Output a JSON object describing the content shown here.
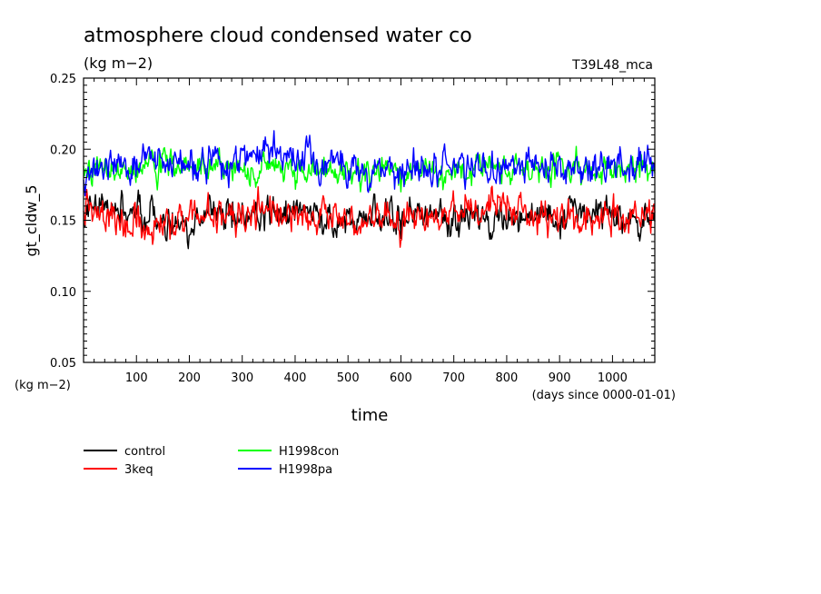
{
  "chart_data": {
    "type": "line",
    "title": "atmosphere cloud condensed water co",
    "subtitle": "(kg m−2)",
    "run_label": "T39L48_mca",
    "ylabel": "gt_cldw_5",
    "yunits": "(kg m−2)",
    "xlabel": "time",
    "xunits": "(days since 0000-01-01)",
    "xlim": [
      0,
      1080
    ],
    "ylim": [
      0.05,
      0.25
    ],
    "xticks": [
      100,
      200,
      300,
      400,
      500,
      600,
      700,
      800,
      900,
      1000
    ],
    "xtick_labels": [
      "100",
      "200",
      "300",
      "400",
      "500",
      "600",
      "700",
      "800",
      "900",
      "1000"
    ],
    "yticks": [
      0.05,
      0.1,
      0.15,
      0.2,
      0.25
    ],
    "ytick_labels": [
      "0.05",
      "0.10",
      "0.15",
      "0.20",
      "0.25"
    ],
    "grid": false,
    "legend_position": "below",
    "series": [
      {
        "name": "control",
        "color": "#000000",
        "mean": 0.153,
        "variability": 0.007,
        "anchors": [
          [
            0,
            0.157
          ],
          [
            50,
            0.163
          ],
          [
            100,
            0.155
          ],
          [
            150,
            0.152
          ],
          [
            200,
            0.147
          ],
          [
            250,
            0.16
          ],
          [
            300,
            0.155
          ],
          [
            350,
            0.153
          ],
          [
            400,
            0.158
          ],
          [
            450,
            0.15
          ],
          [
            500,
            0.152
          ],
          [
            550,
            0.153
          ],
          [
            600,
            0.152
          ],
          [
            650,
            0.153
          ],
          [
            700,
            0.15
          ],
          [
            750,
            0.15
          ],
          [
            800,
            0.151
          ],
          [
            850,
            0.153
          ],
          [
            900,
            0.152
          ],
          [
            950,
            0.155
          ],
          [
            1000,
            0.153
          ],
          [
            1080,
            0.15
          ]
        ]
      },
      {
        "name": "3keq",
        "color": "#ff0000",
        "mean": 0.152,
        "variability": 0.007,
        "anchors": [
          [
            0,
            0.16
          ],
          [
            50,
            0.153
          ],
          [
            100,
            0.147
          ],
          [
            150,
            0.15
          ],
          [
            200,
            0.152
          ],
          [
            250,
            0.155
          ],
          [
            300,
            0.155
          ],
          [
            350,
            0.158
          ],
          [
            400,
            0.15
          ],
          [
            450,
            0.152
          ],
          [
            500,
            0.152
          ],
          [
            550,
            0.15
          ],
          [
            600,
            0.148
          ],
          [
            650,
            0.152
          ],
          [
            700,
            0.155
          ],
          [
            750,
            0.158
          ],
          [
            800,
            0.16
          ],
          [
            850,
            0.157
          ],
          [
            900,
            0.15
          ],
          [
            950,
            0.148
          ],
          [
            1000,
            0.153
          ],
          [
            1080,
            0.155
          ]
        ]
      },
      {
        "name": "H1998con",
        "color": "#00ff00",
        "mean": 0.186,
        "variability": 0.006,
        "anchors": [
          [
            0,
            0.188
          ],
          [
            50,
            0.185
          ],
          [
            100,
            0.186
          ],
          [
            150,
            0.188
          ],
          [
            200,
            0.187
          ],
          [
            250,
            0.19
          ],
          [
            300,
            0.185
          ],
          [
            350,
            0.187
          ],
          [
            400,
            0.185
          ],
          [
            450,
            0.186
          ],
          [
            500,
            0.184
          ],
          [
            550,
            0.185
          ],
          [
            600,
            0.183
          ],
          [
            650,
            0.185
          ],
          [
            700,
            0.183
          ],
          [
            750,
            0.187
          ],
          [
            800,
            0.185
          ],
          [
            850,
            0.186
          ],
          [
            900,
            0.187
          ],
          [
            950,
            0.188
          ],
          [
            1000,
            0.185
          ],
          [
            1080,
            0.184
          ]
        ]
      },
      {
        "name": "H1998pa",
        "color": "#0000ff",
        "mean": 0.188,
        "variability": 0.007,
        "anchors": [
          [
            0,
            0.185
          ],
          [
            50,
            0.188
          ],
          [
            100,
            0.19
          ],
          [
            150,
            0.192
          ],
          [
            200,
            0.188
          ],
          [
            250,
            0.19
          ],
          [
            300,
            0.192
          ],
          [
            350,
            0.195
          ],
          [
            400,
            0.193
          ],
          [
            450,
            0.19
          ],
          [
            500,
            0.188
          ],
          [
            550,
            0.186
          ],
          [
            600,
            0.188
          ],
          [
            650,
            0.187
          ],
          [
            700,
            0.19
          ],
          [
            750,
            0.186
          ],
          [
            800,
            0.188
          ],
          [
            850,
            0.19
          ],
          [
            900,
            0.187
          ],
          [
            950,
            0.186
          ],
          [
            1000,
            0.188
          ],
          [
            1080,
            0.185
          ]
        ]
      }
    ]
  }
}
